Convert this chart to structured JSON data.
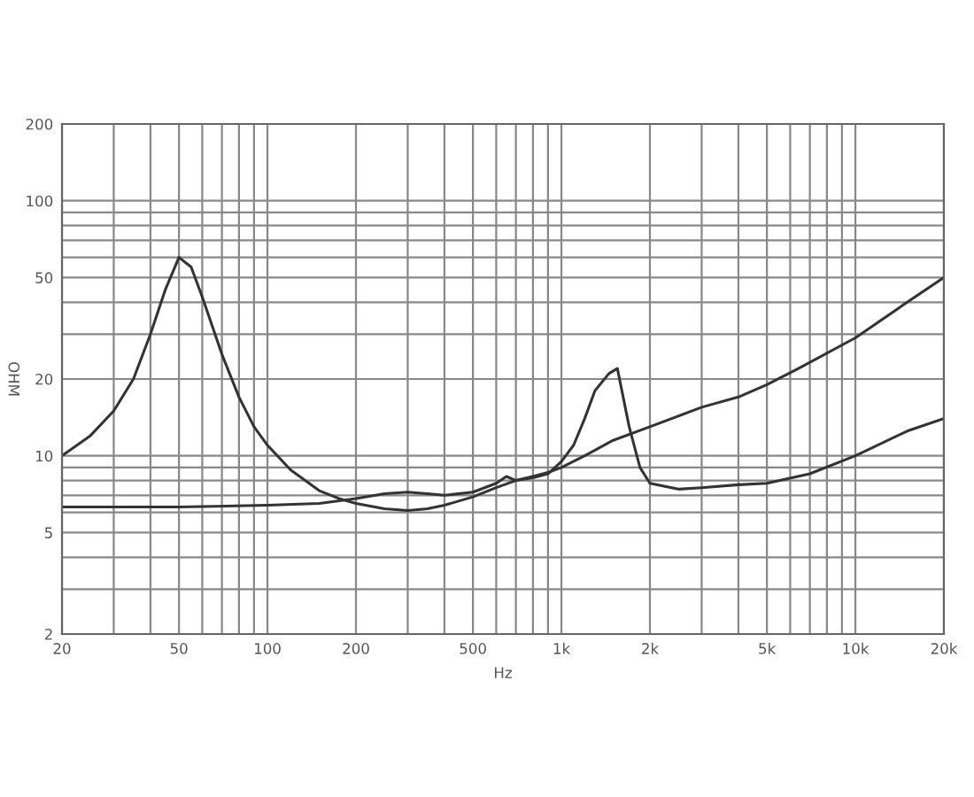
{
  "chart_data": {
    "type": "line",
    "xlabel": "Hz",
    "ylabel": "OHM",
    "log": "xy",
    "grid": true,
    "marker": "none",
    "line_style": "solid",
    "xlim": [
      20,
      20000
    ],
    "ylim": [
      2,
      200
    ],
    "xticks": [
      20,
      {
        "value": 30,
        "label": null
      },
      {
        "value": 40,
        "label": null
      },
      50,
      {
        "value": 60,
        "label": null
      },
      {
        "value": 70,
        "label": null
      },
      {
        "value": 80,
        "label": null
      },
      {
        "value": 90,
        "label": null
      },
      100,
      200,
      {
        "value": 300,
        "label": null
      },
      {
        "value": 400,
        "label": null
      },
      500,
      {
        "value": 600,
        "label": null
      },
      {
        "value": 700,
        "label": null
      },
      {
        "value": 800,
        "label": null
      },
      {
        "value": 900,
        "label": null
      },
      {
        "value": 1000,
        "label": "1k"
      },
      {
        "value": 2000,
        "label": "2k"
      },
      {
        "value": 3000,
        "label": null
      },
      {
        "value": 4000,
        "label": null
      },
      {
        "value": 5000,
        "label": "5k"
      },
      {
        "value": 6000,
        "label": null
      },
      {
        "value": 7000,
        "label": null
      },
      {
        "value": 8000,
        "label": null
      },
      {
        "value": 9000,
        "label": null
      },
      {
        "value": 10000,
        "label": "10k"
      },
      {
        "value": 20000,
        "label": "20k"
      }
    ],
    "yticks": [
      2,
      {
        "value": 3,
        "label": null
      },
      {
        "value": 4,
        "label": null
      },
      5,
      {
        "value": 6,
        "label": null
      },
      {
        "value": 7,
        "label": null
      },
      {
        "value": 8,
        "label": null
      },
      {
        "value": 9,
        "label": null
      },
      10,
      20,
      {
        "value": 30,
        "label": null
      },
      {
        "value": 40,
        "label": null
      },
      50,
      {
        "value": 60,
        "label": null
      },
      {
        "value": 70,
        "label": null
      },
      {
        "value": 80,
        "label": null
      },
      {
        "value": 90,
        "label": null
      },
      100,
      200
    ],
    "series": [
      {
        "color": "#333333",
        "x": [
          20,
          25,
          30,
          35,
          40,
          45,
          50,
          55,
          60,
          70,
          80,
          90,
          100,
          120,
          150,
          175,
          200,
          250,
          300,
          350,
          400,
          500,
          600,
          700,
          800,
          900,
          1000,
          1200,
          1500,
          2000,
          3000,
          4000,
          5000,
          6400,
          10000,
          15000,
          20000
        ],
        "values": [
          10,
          12,
          15,
          20,
          30,
          45,
          60,
          55,
          42,
          25,
          17,
          13,
          11,
          8.8,
          7.3,
          6.8,
          6.5,
          6.2,
          6.1,
          6.2,
          6.4,
          6.9,
          7.5,
          8.0,
          8.3,
          8.6,
          9,
          10,
          11.5,
          13,
          15.5,
          17,
          19,
          22,
          29,
          40,
          50
        ]
      },
      {
        "color": "#333333",
        "x": [
          20,
          50,
          100,
          150,
          200,
          250,
          300,
          350,
          400,
          500,
          600,
          650,
          700,
          800,
          900,
          1000,
          1100,
          1200,
          1300,
          1450,
          1550,
          1700,
          1850,
          2000,
          2500,
          3000,
          4000,
          5000,
          7000,
          10000,
          15000,
          20000
        ],
        "values": [
          6.3,
          6.3,
          6.4,
          6.5,
          6.8,
          7.1,
          7.2,
          7.1,
          7.0,
          7.2,
          7.8,
          8.3,
          8.0,
          8.2,
          8.5,
          9.5,
          11,
          14,
          18,
          21,
          22,
          13,
          9,
          7.8,
          7.4,
          7.5,
          7.7,
          7.8,
          8.5,
          10,
          12.5,
          14
        ]
      }
    ]
  }
}
